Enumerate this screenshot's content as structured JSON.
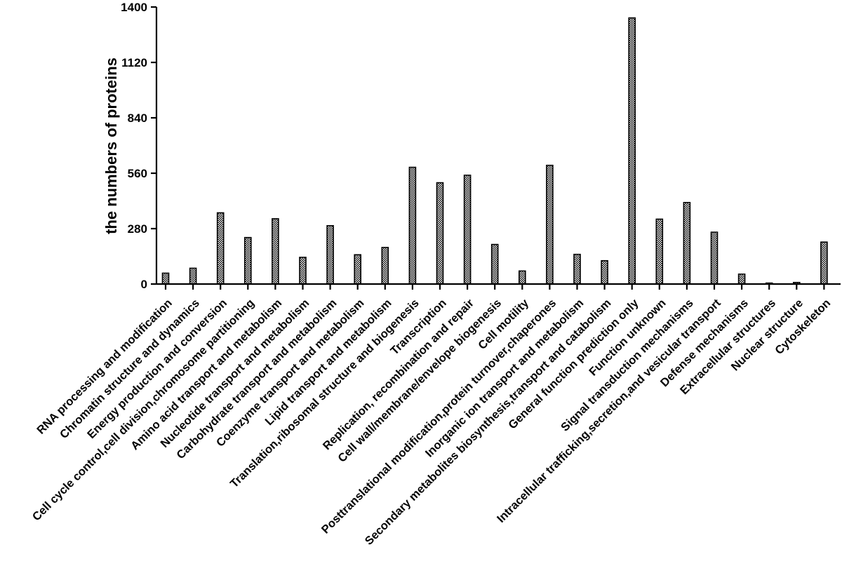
{
  "chart_data": {
    "type": "bar",
    "title": "",
    "xlabel": "",
    "ylabel": "the numbers of proteins",
    "ylim": [
      0,
      1400
    ],
    "yticks": [
      0,
      280,
      560,
      840,
      1120,
      1400
    ],
    "grid": false,
    "legend": "none",
    "bar_fill": "black-white checkered",
    "categories": [
      "RNA processing and modification",
      "Chromatin structure and dynamics",
      "Energy production and conversion",
      "Cell cycle control,cell division,chromosome partitioning",
      "Amino acid transport and metabolism",
      "Nucleotide transport and metabolism",
      "Carbohydrate transport and metabolism",
      "Coenzyme transport and metabolism",
      "Lipid transport and metabolism",
      "Translation,ribosomal structure and biogenesis",
      "Transcription",
      "Replication, recombination and repair",
      "Cell wall/membrane/envelope biogenesis",
      "Cell motility",
      "Posttranslational modification,protein turnover,chaperones",
      "Inorganic ion transport and metabolism",
      "Secondary metabolites biosynthesis,transport and catabolism",
      "General function prediction only",
      "Function unknown",
      "Signal transduction mechanisms",
      "Intracellular trafficking,secretion,and vesicular transport",
      "Defense mechanisms",
      "Extracellular structures",
      "Nuclear structure",
      "Cytoskeleton"
    ],
    "values": [
      55,
      80,
      360,
      235,
      330,
      135,
      295,
      148,
      185,
      590,
      512,
      550,
      200,
      66,
      600,
      150,
      118,
      1345,
      328,
      412,
      262,
      50,
      5,
      8,
      212
    ]
  }
}
